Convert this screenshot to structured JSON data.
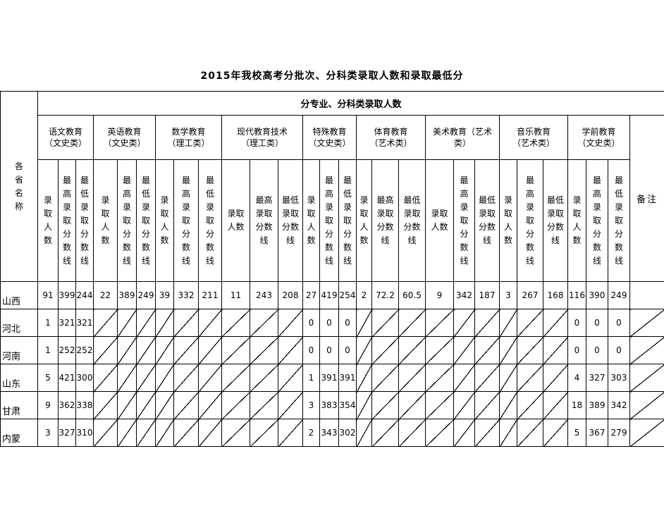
{
  "title": "2015年我校高考分批次、分科类录取人数和录取最低分",
  "colors": {
    "border": "#000000",
    "background": "#ffffff",
    "text": "#000000"
  },
  "table": {
    "corner_header": "各省名称",
    "top_header": "分专业、分科类录取人数",
    "remark_header": "备注",
    "groups": [
      {
        "label": "语文教育（文史类）"
      },
      {
        "label": "英语教育（文史类）"
      },
      {
        "label": "数学教育（理工类）"
      },
      {
        "label": "现代教育技术（理工类）"
      },
      {
        "label": "特殊教育（文史类）"
      },
      {
        "label": "体育教育（艺术类）"
      },
      {
        "label": "美术教育（艺术类）"
      },
      {
        "label": "音乐教育（艺术类）"
      },
      {
        "label": "学前教育（文史类）"
      }
    ],
    "sub_headers": {
      "count": "录取人数",
      "max": "最高录取分数线",
      "min": "最低录取分数线"
    },
    "rows": [
      {
        "province": "山西",
        "cells": [
          "91",
          "399",
          "244",
          "22",
          "389",
          "249",
          "39",
          "332",
          "211",
          "11",
          "243",
          "208",
          "27",
          "419",
          "254",
          "2",
          "72.2",
          "60.5",
          "9",
          "342",
          "187",
          "3",
          "267",
          "168",
          "116",
          "390",
          "249"
        ],
        "remark": ""
      },
      {
        "province": "河北",
        "cells": [
          "1",
          "321",
          "321",
          null,
          null,
          null,
          null,
          null,
          null,
          null,
          null,
          null,
          "0",
          "0",
          "0",
          null,
          null,
          null,
          null,
          null,
          null,
          null,
          null,
          null,
          "0",
          "0",
          "0"
        ],
        "remark": null
      },
      {
        "province": "河南",
        "cells": [
          "1",
          "252",
          "252",
          null,
          null,
          null,
          null,
          null,
          null,
          null,
          null,
          null,
          "0",
          "0",
          "0",
          null,
          null,
          null,
          null,
          null,
          null,
          null,
          null,
          null,
          "0",
          "0",
          "0"
        ],
        "remark": null
      },
      {
        "province": "山东",
        "cells": [
          "5",
          "421",
          "300",
          null,
          null,
          null,
          null,
          null,
          null,
          null,
          null,
          null,
          "1",
          "391",
          "391",
          null,
          null,
          null,
          null,
          null,
          null,
          null,
          null,
          null,
          "4",
          "327",
          "303"
        ],
        "remark": null
      },
      {
        "province": "甘肃",
        "cells": [
          "9",
          "362",
          "338",
          null,
          null,
          null,
          null,
          null,
          null,
          null,
          null,
          null,
          "3",
          "383",
          "354",
          null,
          null,
          null,
          null,
          null,
          null,
          null,
          null,
          null,
          "18",
          "389",
          "342"
        ],
        "remark": null
      },
      {
        "province": "内蒙",
        "cells": [
          "3",
          "327",
          "310",
          null,
          null,
          null,
          null,
          null,
          null,
          null,
          null,
          null,
          "2",
          "343",
          "302",
          null,
          null,
          null,
          null,
          null,
          null,
          null,
          null,
          null,
          "5",
          "367",
          "279"
        ],
        "remark": null
      }
    ]
  }
}
